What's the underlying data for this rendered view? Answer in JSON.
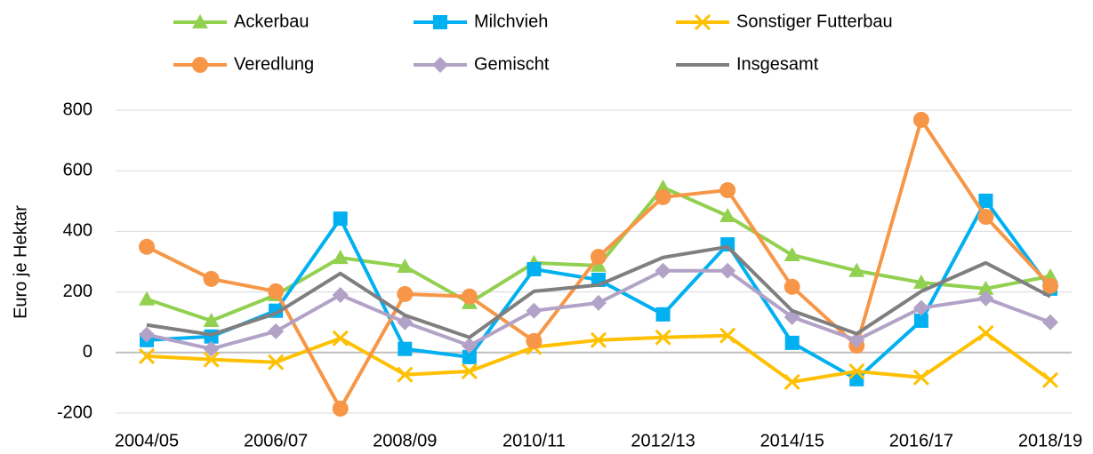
{
  "chart_data": {
    "type": "line",
    "ylabel": "Euro je Hektar",
    "categories": [
      "2004/05",
      null,
      "2006/07",
      null,
      "2008/09",
      null,
      "2010/11",
      null,
      "2012/13",
      null,
      "2014/15",
      null,
      "2016/17",
      null,
      "2018/19"
    ],
    "ylim": [
      -200,
      800
    ],
    "yticks": [
      -200,
      0,
      200,
      400,
      600,
      800
    ],
    "grid": true,
    "series": [
      {
        "name": "Ackerbau",
        "color": "#92d050",
        "marker": "triangle",
        "values": [
          176,
          105,
          190,
          313,
          284,
          164,
          296,
          287,
          545,
          451,
          322,
          270,
          231,
          211,
          252
        ]
      },
      {
        "name": "Milchvieh",
        "color": "#00b0f0",
        "marker": "square",
        "values": [
          41,
          53,
          138,
          442,
          12,
          -15,
          275,
          240,
          126,
          357,
          32,
          -88,
          105,
          501,
          211
        ]
      },
      {
        "name": "Sonstiger Futterbau",
        "color": "#ffc000",
        "marker": "x",
        "values": [
          -12,
          -23,
          -32,
          47,
          -73,
          -62,
          18,
          41,
          50,
          56,
          -97,
          -62,
          -82,
          64,
          -91
        ]
      },
      {
        "name": "Veredlung",
        "color": "#f79646",
        "marker": "circle",
        "values": [
          349,
          243,
          202,
          -185,
          193,
          185,
          38,
          316,
          513,
          536,
          217,
          23,
          768,
          448,
          220
        ]
      },
      {
        "name": "Gemischt",
        "color": "#b3a2c7",
        "marker": "diamond",
        "values": [
          59,
          12,
          70,
          190,
          100,
          23,
          138,
          164,
          270,
          270,
          117,
          41,
          147,
          179,
          100
        ]
      },
      {
        "name": "Insgesamt",
        "color": "#7f7f7f",
        "values": [
          91,
          59,
          129,
          261,
          123,
          50,
          202,
          223,
          314,
          349,
          138,
          62,
          202,
          296,
          185
        ]
      }
    ]
  }
}
